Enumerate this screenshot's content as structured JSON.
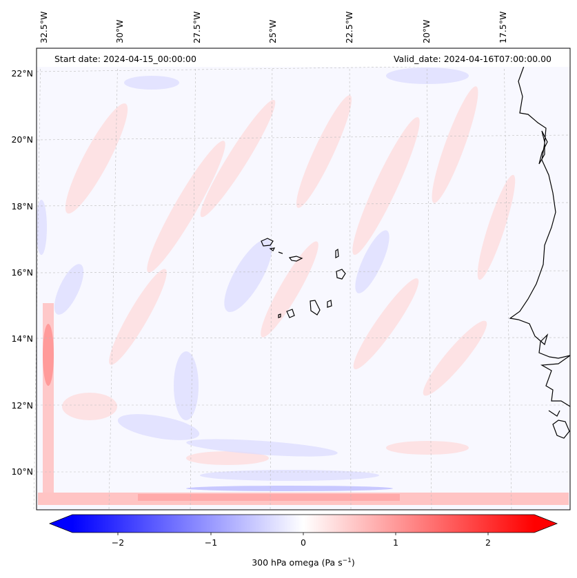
{
  "header": {
    "start_date": "Start date: 2024-04-15_00:00:00",
    "valid_date": "Valid_date: 2024-04-16T07:00:00.00"
  },
  "map": {
    "lon_labels": [
      "32.5°W",
      "30°W",
      "27.5°W",
      "25°W",
      "22.5°W",
      "20°W",
      "17.5°W"
    ],
    "lat_labels": [
      "22°N",
      "20°N",
      "18°N",
      "16°N",
      "14°N",
      "12°N",
      "10°N"
    ],
    "gridlines": "dashed",
    "coastline_color": "#000000"
  },
  "colorbar": {
    "label_main": "300 hPa omega (Pa s",
    "label_exp": "−1",
    "label_end": ")",
    "ticks": [
      "−2",
      "−1",
      "0",
      "1",
      "2"
    ],
    "min_color": "#0000ff",
    "mid_color": "#ffffff",
    "max_color": "#ff0000",
    "extend": "both"
  }
}
